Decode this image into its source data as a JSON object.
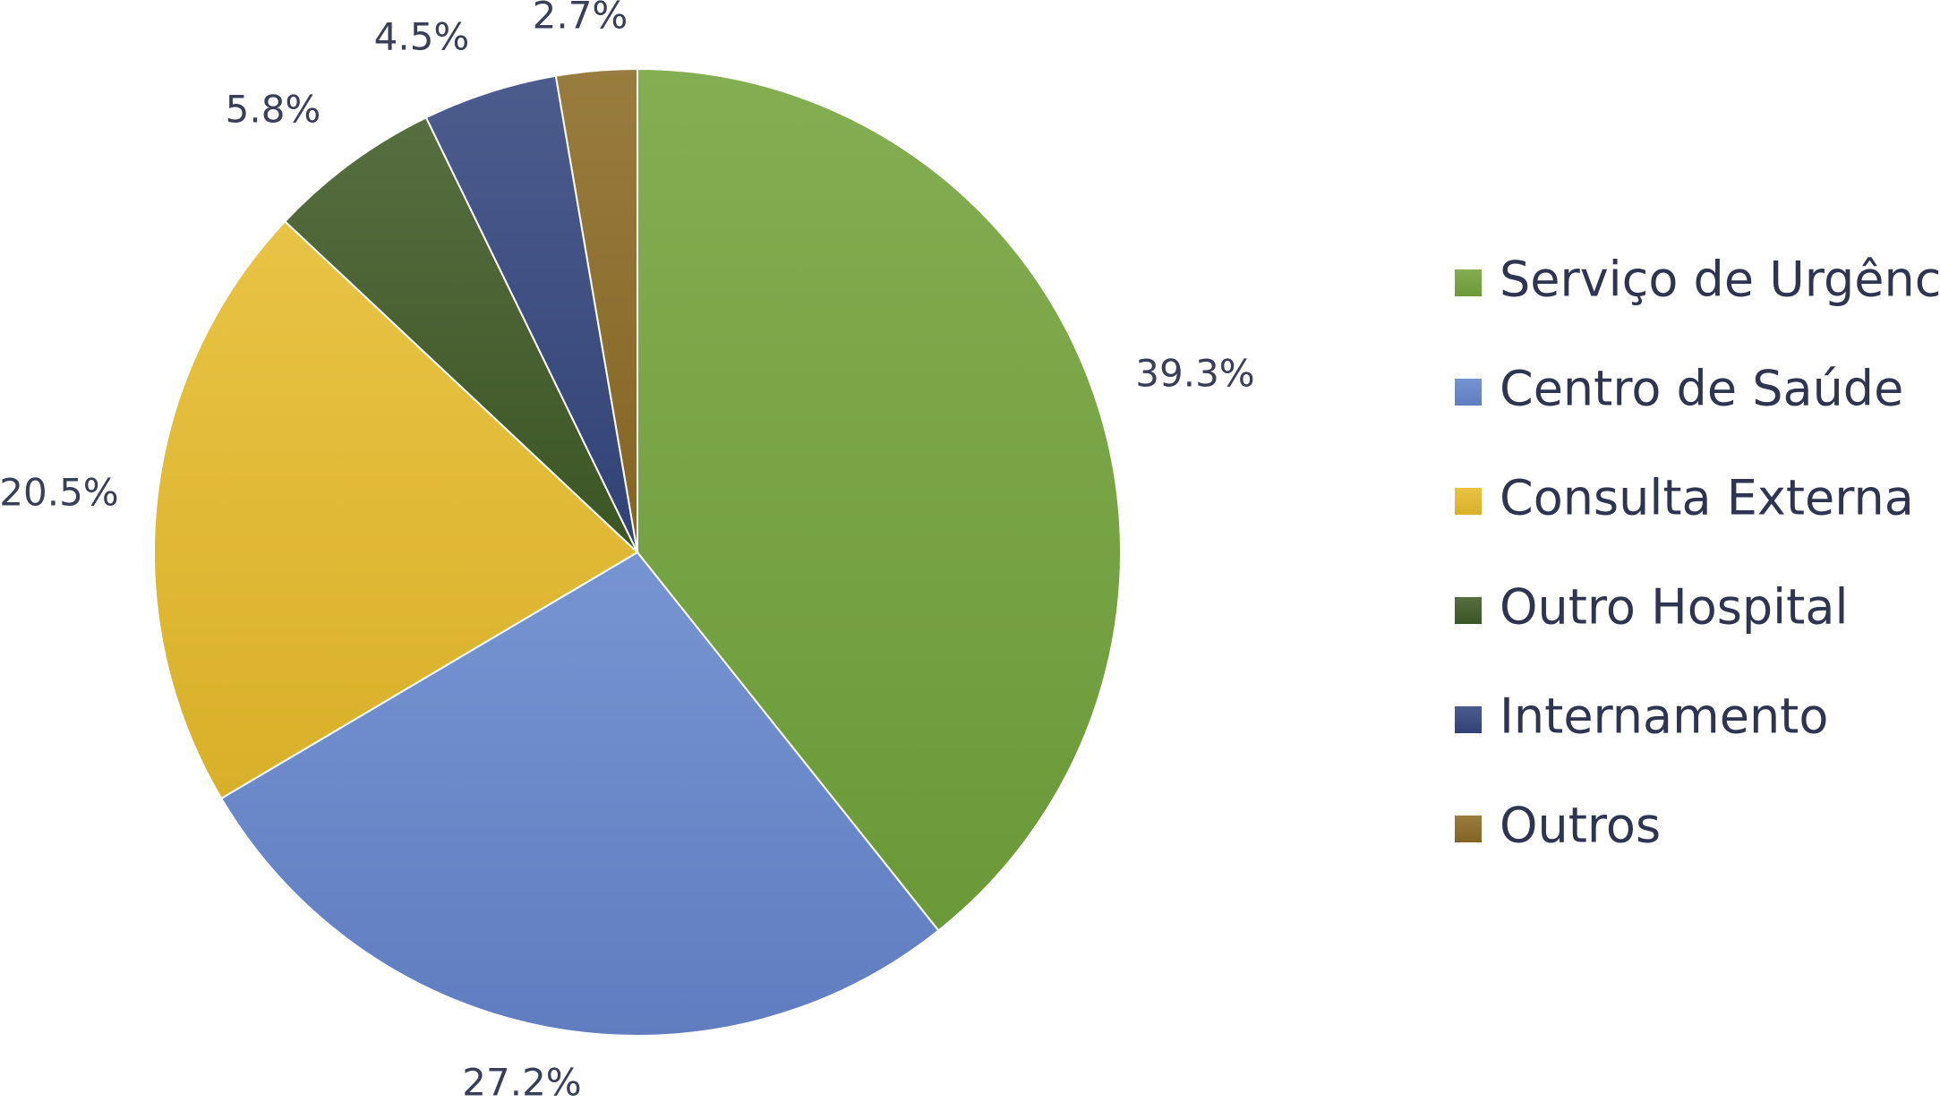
{
  "chart_data": {
    "type": "pie",
    "title": "",
    "legend_position": "right",
    "start_angle": "top, clockwise",
    "slices": [
      {
        "label": "Serviço de Urgência",
        "value": 39.3,
        "display": "39.3%",
        "color": "#72a33a"
      },
      {
        "label": "Centro de Saúde",
        "value": 27.2,
        "display": "27.2%",
        "color": "#6585cc"
      },
      {
        "label": "Consulta Externa",
        "value": 20.5,
        "display": "20.5%",
        "color": "#e6bb2c"
      },
      {
        "label": "Outro Hospital",
        "value": 5.8,
        "display": "5.8%",
        "color": "#405a26"
      },
      {
        "label": "Internamento",
        "value": 4.5,
        "display": "4.5%",
        "color": "#34467e"
      },
      {
        "label": "Outros",
        "value": 2.7,
        "display": "2.7%",
        "color": "#8b6a25"
      }
    ]
  }
}
